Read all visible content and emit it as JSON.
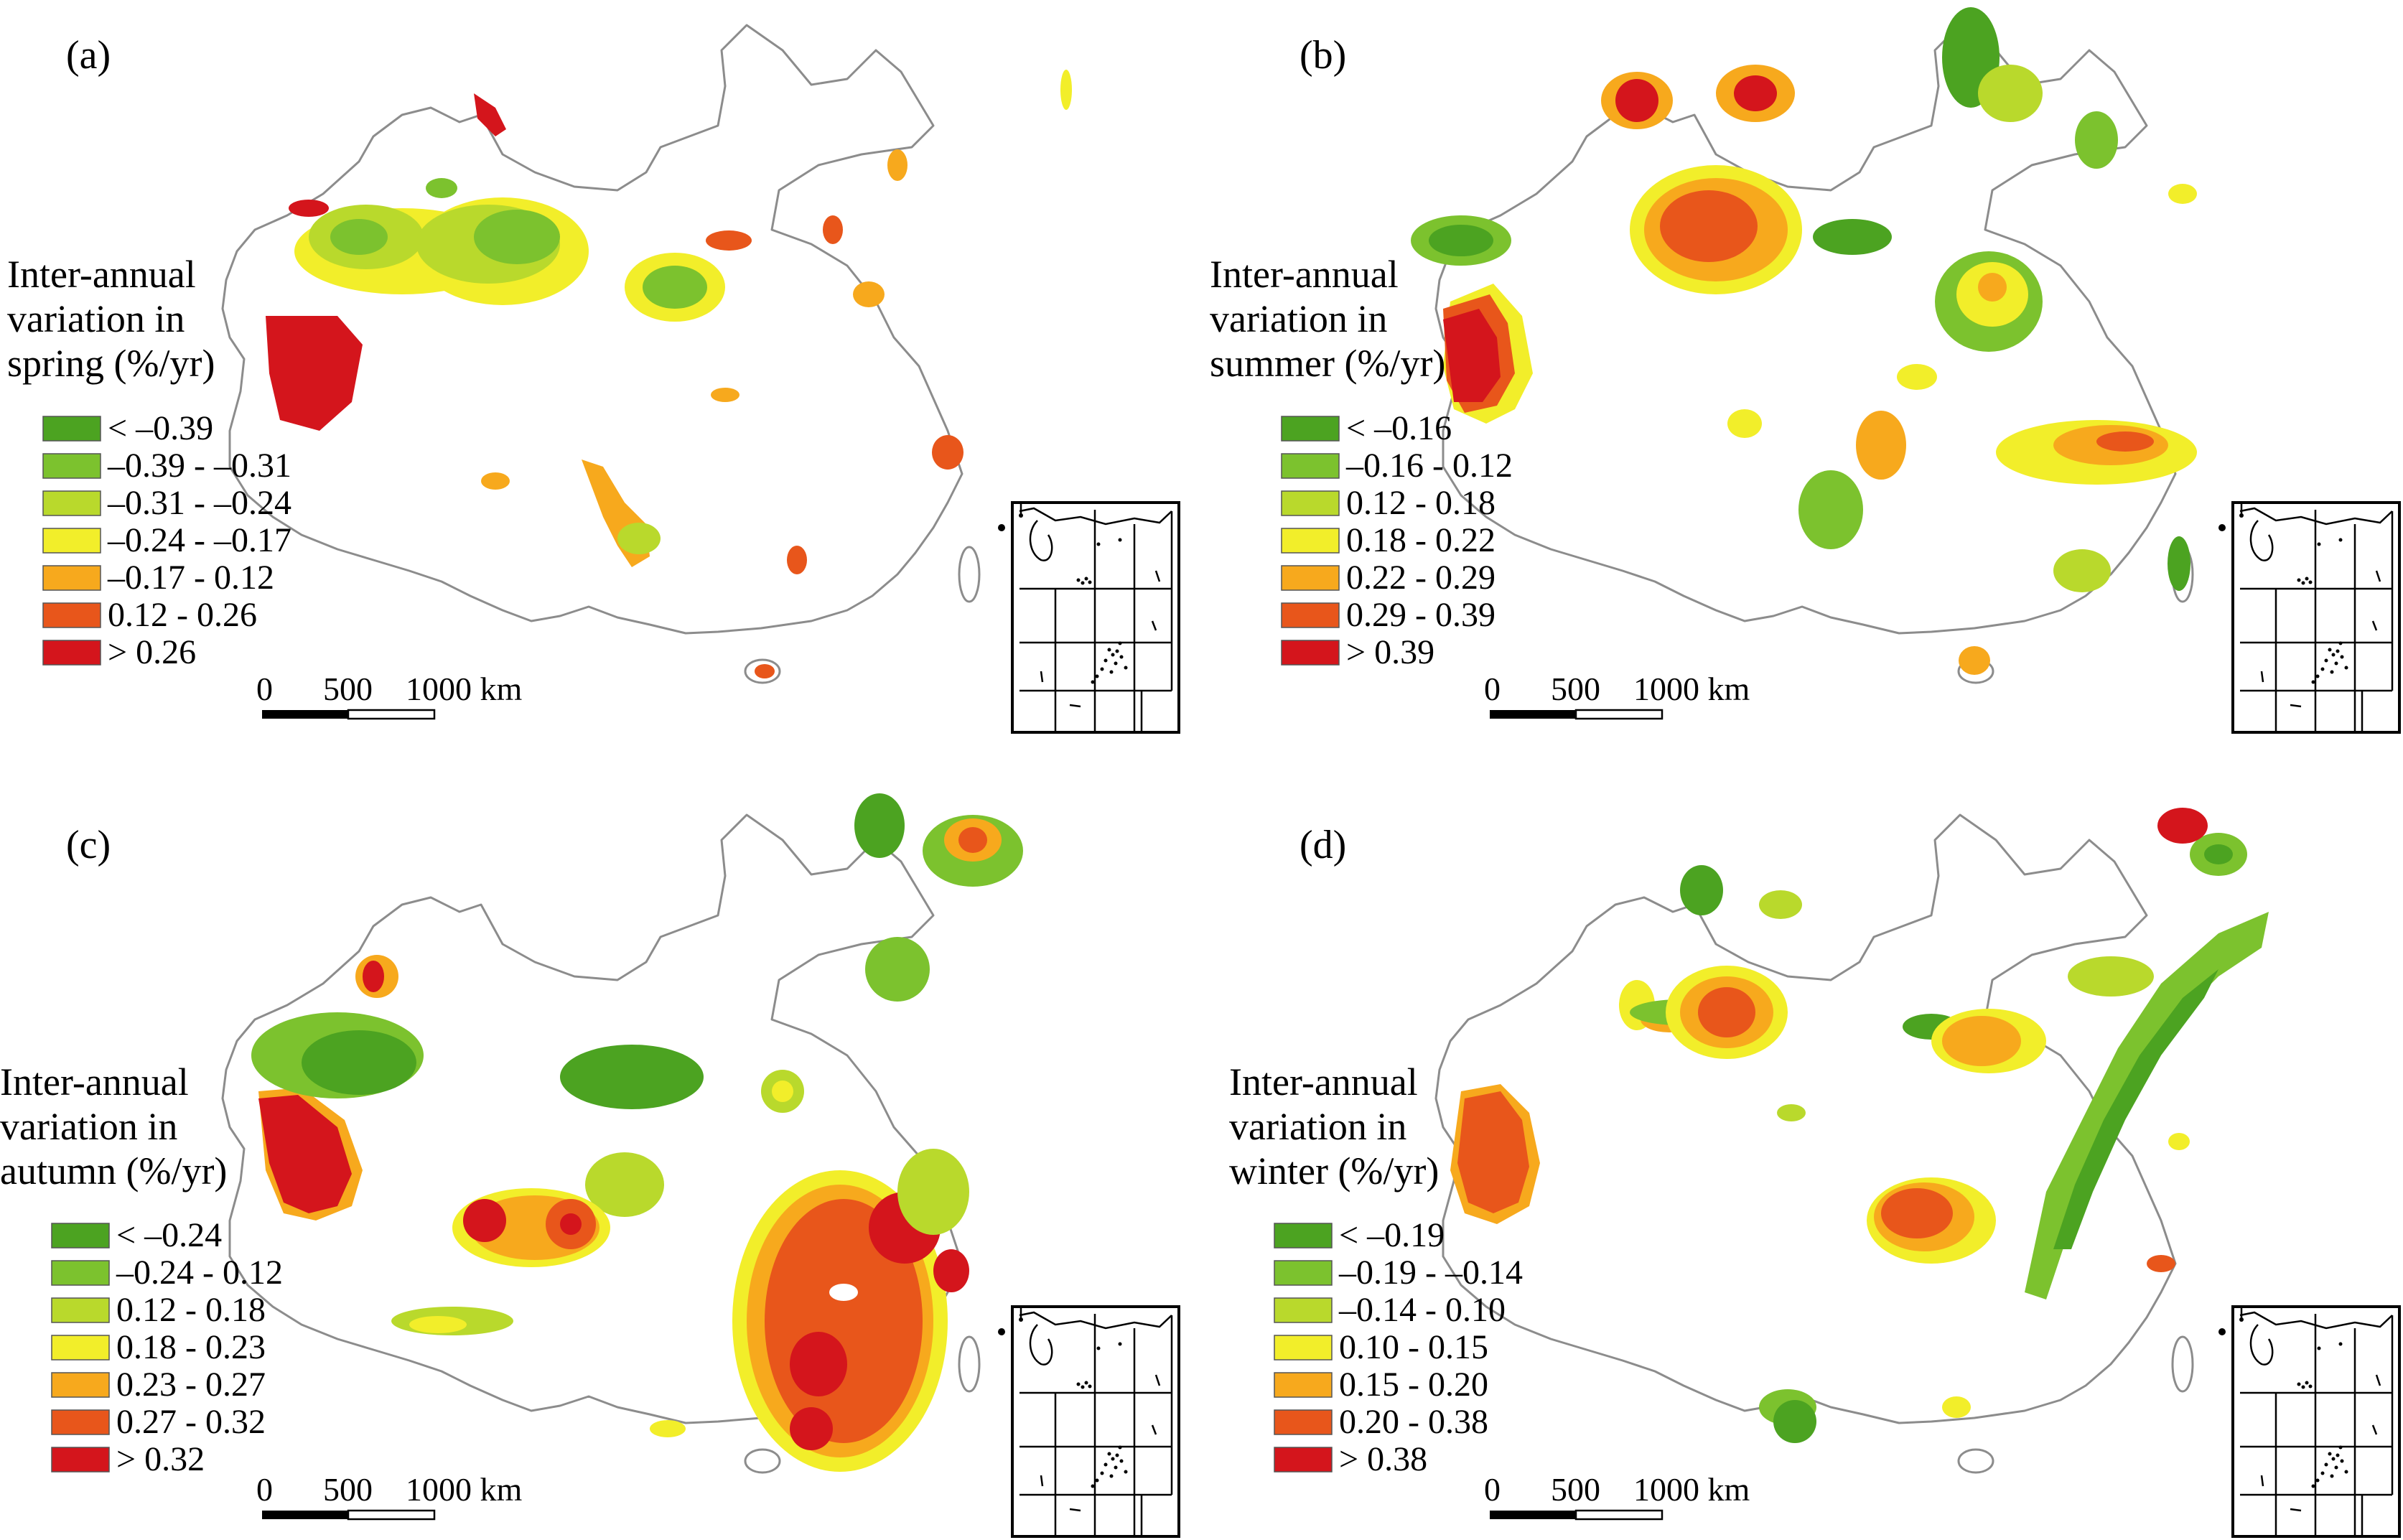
{
  "panels": [
    {
      "id": "a",
      "label": "(a)",
      "legend_title": [
        "Inter-annual",
        "variation in",
        "spring (%/yr)"
      ],
      "classes": [
        "< –0.39",
        "–0.39 - –0.31",
        "–0.31 - –0.24",
        "–0.24 - –0.17",
        "–0.17 - 0.12",
        "0.12 - 0.26",
        "> 0.26"
      ]
    },
    {
      "id": "b",
      "label": "(b)",
      "legend_title": [
        "Inter-annual",
        "variation in",
        "summer (%/yr)"
      ],
      "classes": [
        "< –0.16",
        "–0.16 - 0.12",
        "0.12 - 0.18",
        "0.18 - 0.22",
        "0.22 - 0.29",
        "0.29 - 0.39",
        "> 0.39"
      ]
    },
    {
      "id": "c",
      "label": "(c)",
      "legend_title": [
        "Inter-annual",
        "variation in",
        "autumn (%/yr)"
      ],
      "classes": [
        "< –0.24",
        "–0.24 - 0.12",
        "0.12 - 0.18",
        "0.18 - 0.23",
        "0.23 - 0.27",
        "0.27 - 0.32",
        "> 0.32"
      ]
    },
    {
      "id": "d",
      "label": "(d)",
      "legend_title": [
        "Inter-annual",
        "variation in",
        "winter (%/yr)"
      ],
      "classes": [
        "< –0.19",
        "–0.19 - –0.14",
        "–0.14 - 0.10",
        "0.10 - 0.15",
        "0.15 - 0.20",
        "0.20 - 0.38",
        "> 0.38"
      ]
    }
  ],
  "palette": [
    "#4ca321",
    "#7cc22e",
    "#b9d92c",
    "#f2ee2a",
    "#f7a91d",
    "#e8561b",
    "#d4151c"
  ],
  "scale_bar": {
    "ticks": [
      "0",
      "500",
      "1000 km"
    ]
  }
}
